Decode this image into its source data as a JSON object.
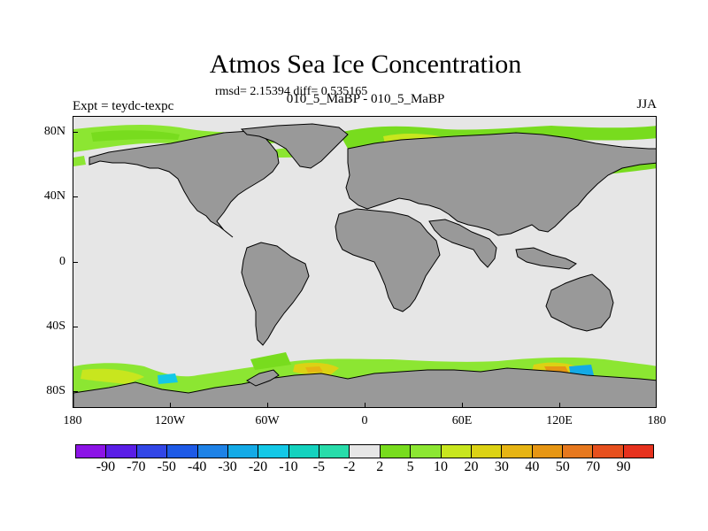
{
  "title": "Atmos Sea Ice Concentration",
  "rmsd_text": "rmsd= 2.15394 diff= 0.535165",
  "subtitle": "010_5_MaBP - 010_5_MaBP",
  "experiment": "Expt = teydc-texpc",
  "season": "JJA",
  "lat_labels": [
    "80N",
    "40N",
    "0",
    "40S",
    "80S"
  ],
  "lon_labels": [
    "180",
    "120W",
    "60W",
    "0",
    "60E",
    "120E",
    "180"
  ],
  "colorbar": {
    "levels": [
      "-90",
      "-70",
      "-50",
      "-40",
      "-30",
      "-20",
      "-10",
      "-5",
      "-2",
      "2",
      "5",
      "10",
      "20",
      "30",
      "40",
      "50",
      "70",
      "90"
    ],
    "colors": [
      "#8c14e6",
      "#5a1ee6",
      "#3246e6",
      "#1e5ae6",
      "#1e82e6",
      "#14aae6",
      "#14c8e6",
      "#14d2be",
      "#28dcaa",
      "#e6e6e6",
      "#78dc1e",
      "#8ce632",
      "#c8e61e",
      "#dcd214",
      "#e6b414",
      "#e69614",
      "#e6781e",
      "#e6501e",
      "#e6321e"
    ]
  },
  "colors": {
    "ocean_no_change": "#e6e6e6",
    "land": "#999999",
    "coastline": "#000000"
  }
}
